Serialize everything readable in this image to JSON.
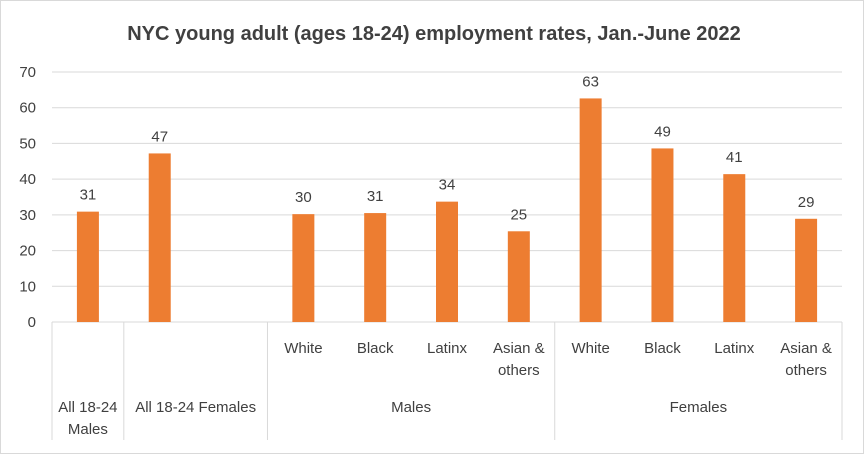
{
  "chart_data": {
    "type": "bar",
    "title": "NYC young adult (ages 18-24) employment rates, Jan.-June 2022",
    "ylim": [
      0,
      70
    ],
    "yticks": [
      0,
      10,
      20,
      30,
      40,
      50,
      60,
      70
    ],
    "grid": true,
    "color": "#ED7D31",
    "categories": [
      {
        "label": "All 18-24 Males",
        "lines": [
          "All 18-24",
          "Males"
        ],
        "group": "",
        "value": 30.9,
        "data_label": "31"
      },
      {
        "label": "All 18-24 Females",
        "lines": [
          "All 18-24 Females"
        ],
        "group": "",
        "value": 47.2,
        "data_label": "47"
      },
      {
        "label": "",
        "lines": [],
        "group": "",
        "value": null,
        "data_label": ""
      },
      {
        "label": "White",
        "lines": [
          "White"
        ],
        "group": "Males",
        "value": 30.2,
        "data_label": "30"
      },
      {
        "label": "Black",
        "lines": [
          "Black"
        ],
        "group": "Males",
        "value": 30.5,
        "data_label": "31"
      },
      {
        "label": "Latinx",
        "lines": [
          "Latinx"
        ],
        "group": "Males",
        "value": 33.7,
        "data_label": "34"
      },
      {
        "label": "Asian & others",
        "lines": [
          "Asian &",
          "others"
        ],
        "group": "Males",
        "value": 25.4,
        "data_label": "25"
      },
      {
        "label": "White",
        "lines": [
          "White"
        ],
        "group": "Females",
        "value": 62.6,
        "data_label": "63"
      },
      {
        "label": "Black",
        "lines": [
          "Black"
        ],
        "group": "Females",
        "value": 48.6,
        "data_label": "49"
      },
      {
        "label": "Latinx",
        "lines": [
          "Latinx"
        ],
        "group": "Females",
        "value": 41.4,
        "data_label": "41"
      },
      {
        "label": "Asian & others",
        "lines": [
          "Asian &",
          "others"
        ],
        "group": "Females",
        "value": 28.9,
        "data_label": "29"
      }
    ],
    "groups": [
      "Males",
      "Females"
    ]
  }
}
